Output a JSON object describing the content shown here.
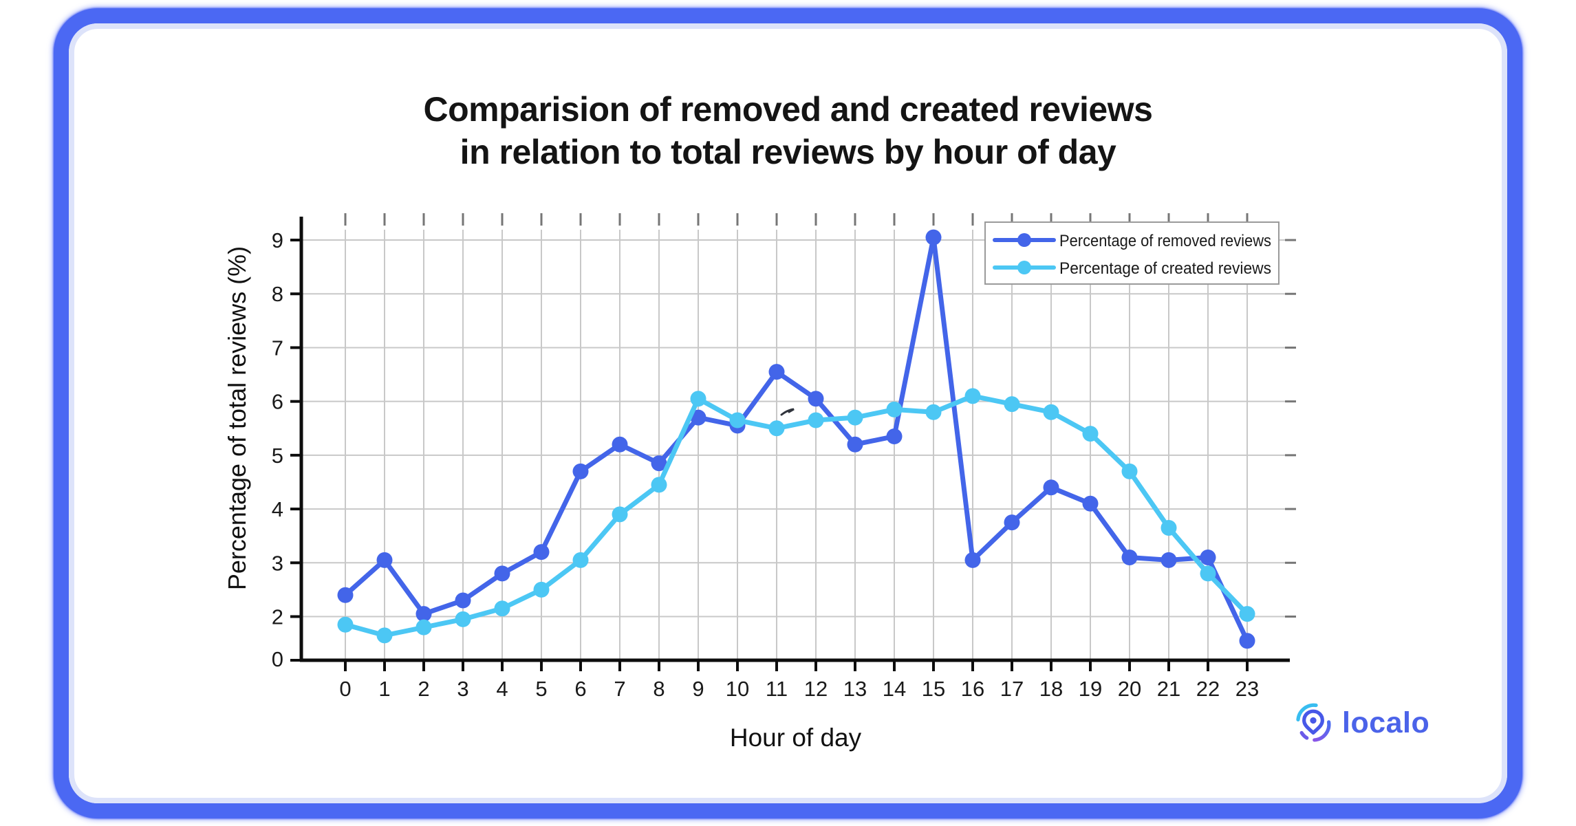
{
  "frame": {
    "border_color": "#4b68f3",
    "inner_edge_color": "#dde3fa",
    "background": "#ffffff"
  },
  "title": {
    "line1": "Comparision of removed and created reviews",
    "line2": "in relation to total reviews by hour of day"
  },
  "chart_data": {
    "type": "line",
    "x": [
      0,
      1,
      2,
      3,
      4,
      5,
      6,
      7,
      8,
      9,
      10,
      11,
      12,
      13,
      14,
      15,
      16,
      17,
      18,
      19,
      20,
      21,
      22,
      23
    ],
    "series": [
      {
        "id": "removed",
        "name": "Percentage of removed reviews",
        "color": "#4365e9",
        "values": [
          2.4,
          3.05,
          2.05,
          2.3,
          2.8,
          3.2,
          4.7,
          5.2,
          4.85,
          5.7,
          5.55,
          6.55,
          6.05,
          5.2,
          5.35,
          9.05,
          3.05,
          3.75,
          4.4,
          4.1,
          3.1,
          3.05,
          3.1,
          1.55
        ]
      },
      {
        "id": "created",
        "name": "Percentage of created reviews",
        "color": "#4cc7f4",
        "values": [
          1.85,
          1.65,
          1.8,
          1.95,
          2.15,
          2.5,
          3.05,
          3.9,
          4.45,
          6.05,
          5.65,
          5.5,
          5.65,
          5.7,
          5.85,
          5.8,
          6.1,
          5.95,
          5.8,
          5.4,
          4.7,
          3.65,
          2.8,
          2.05
        ]
      }
    ],
    "xlabel": "Hour of day",
    "ylabel": "Percentage of total reviews (%)",
    "y_ticks": [
      0,
      2,
      3,
      4,
      5,
      6,
      7,
      8,
      9
    ],
    "ylim": [
      0,
      9.4
    ],
    "grid": true,
    "legend_position": "top-right",
    "colors": {
      "axis": "#0d0d0d",
      "grid": "#c8c8c8",
      "minor_tick": "#767676",
      "text": "#1a1a1a",
      "legend_border": "#9a9a9a"
    }
  },
  "logo": {
    "text": "localo",
    "color": "#4b63e9"
  }
}
